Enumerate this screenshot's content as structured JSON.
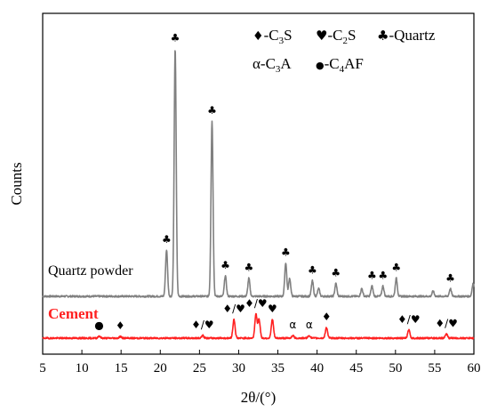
{
  "chart_data": {
    "type": "line",
    "title": "",
    "xlabel": "2θ/(°)",
    "ylabel": "Counts",
    "xlim": [
      5,
      60
    ],
    "xticks": [
      "5",
      "10",
      "15",
      "20",
      "25",
      "30",
      "35",
      "40",
      "45",
      "50",
      "55",
      "60"
    ],
    "grid": false,
    "legend": {
      "placement": "top-right",
      "entries": [
        {
          "symbol": "♦",
          "label": "-C3S"
        },
        {
          "symbol": "♥",
          "label": "-C2S"
        },
        {
          "symbol": "♣",
          "label": "-Quartz"
        },
        {
          "symbol": "α",
          "label": "-C3A"
        },
        {
          "symbol": "●",
          "label": "-C4AF"
        }
      ]
    },
    "series": [
      {
        "name": "Quartz powder",
        "color": "#808080",
        "baseline": 4,
        "peaks": [
          {
            "x": 20.8,
            "y": 18,
            "label": "♣"
          },
          {
            "x": 21.9,
            "y": 96,
            "label": "♣"
          },
          {
            "x": 26.6,
            "y": 68,
            "label": "♣"
          },
          {
            "x": 28.3,
            "y": 8,
            "label": "♣"
          },
          {
            "x": 31.3,
            "y": 7,
            "label": "♣"
          },
          {
            "x": 36.0,
            "y": 13,
            "label": "♣"
          },
          {
            "x": 36.5,
            "y": 7,
            "label": ""
          },
          {
            "x": 39.4,
            "y": 6,
            "label": "♣"
          },
          {
            "x": 40.2,
            "y": 3,
            "label": ""
          },
          {
            "x": 42.4,
            "y": 5,
            "label": "♣"
          },
          {
            "x": 45.7,
            "y": 3,
            "label": ""
          },
          {
            "x": 47.0,
            "y": 4,
            "label": "♣"
          },
          {
            "x": 48.4,
            "y": 4,
            "label": "♣"
          },
          {
            "x": 50.1,
            "y": 7,
            "label": "♣"
          },
          {
            "x": 54.8,
            "y": 2,
            "label": ""
          },
          {
            "x": 57.0,
            "y": 3,
            "label": "♣"
          },
          {
            "x": 59.9,
            "y": 5,
            "label": ""
          }
        ]
      },
      {
        "name": "Cement",
        "color": "#ff2020",
        "baseline": 0,
        "peaks": [
          {
            "x": 12.2,
            "y": 0.8,
            "label": "●"
          },
          {
            "x": 14.9,
            "y": 0.6,
            "label": "♦"
          },
          {
            "x": 25.4,
            "y": 1,
            "label": "♦/♥"
          },
          {
            "x": 29.4,
            "y": 7,
            "label": "♦/♥"
          },
          {
            "x": 32.2,
            "y": 9,
            "label": "♦/♥"
          },
          {
            "x": 32.6,
            "y": 7,
            "label": ""
          },
          {
            "x": 34.3,
            "y": 7,
            "label": "♥"
          },
          {
            "x": 36.9,
            "y": 1,
            "label": "α"
          },
          {
            "x": 39.0,
            "y": 1,
            "label": "α"
          },
          {
            "x": 41.2,
            "y": 4,
            "label": "♦"
          },
          {
            "x": 51.7,
            "y": 3,
            "label": "♦/♥"
          },
          {
            "x": 56.5,
            "y": 1.5,
            "label": "♦/♥"
          }
        ]
      }
    ]
  }
}
